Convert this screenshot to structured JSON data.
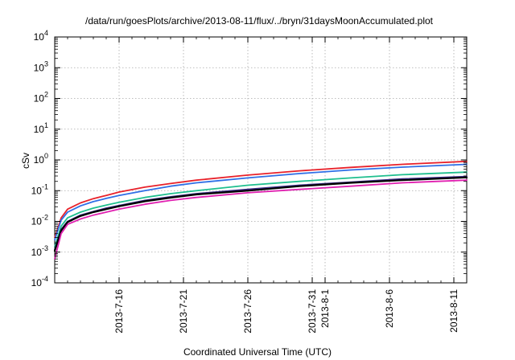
{
  "chart_data": {
    "type": "line",
    "title": "/data/run/goesPlots/archive/2013-08-11/flux/../bryn/31daysMoonAccumulated.plot",
    "xlabel": "Coordinated Universal Time (UTC)",
    "ylabel": "cSv",
    "yscale": "log",
    "ylim": [
      0.0001,
      10000
    ],
    "xlim": [
      "2013-07-11",
      "2013-08-12"
    ],
    "grid": true,
    "x_ticks": [
      "2013-7-16",
      "2013-7-21",
      "2013-7-26",
      "2013-7-31",
      "2013-8-1",
      "2013-8-6",
      "2013-8-11"
    ],
    "y_ticks": [
      {
        "value": 0.0001,
        "base": "10",
        "exp": "-4"
      },
      {
        "value": 0.001,
        "base": "10",
        "exp": "-3"
      },
      {
        "value": 0.01,
        "base": "10",
        "exp": "-2"
      },
      {
        "value": 0.1,
        "base": "10",
        "exp": "-1"
      },
      {
        "value": 1,
        "base": "10",
        "exp": "0"
      },
      {
        "value": 10,
        "base": "10",
        "exp": "1"
      },
      {
        "value": 100,
        "base": "10",
        "exp": "2"
      },
      {
        "value": 1000,
        "base": "10",
        "exp": "3"
      },
      {
        "value": 10000,
        "base": "10",
        "exp": "4"
      }
    ],
    "series": [
      {
        "color": "#e8212a",
        "x": [
          "2013-07-11",
          "2013-07-11T12:00",
          "2013-07-12",
          "2013-07-13",
          "2013-07-14",
          "2013-07-15",
          "2013-07-16",
          "2013-07-18",
          "2013-07-20",
          "2013-07-22",
          "2013-07-26",
          "2013-07-30",
          "2013-08-03",
          "2013-08-07",
          "2013-08-12"
        ],
        "y": [
          0.003,
          0.013,
          0.025,
          0.04,
          0.055,
          0.07,
          0.09,
          0.13,
          0.17,
          0.22,
          0.32,
          0.44,
          0.57,
          0.72,
          0.9
        ]
      },
      {
        "color": "#2f6fe6",
        "x": [
          "2013-07-11",
          "2013-07-11T12:00",
          "2013-07-12",
          "2013-07-13",
          "2013-07-14",
          "2013-07-15",
          "2013-07-16",
          "2013-07-18",
          "2013-07-20",
          "2013-07-22",
          "2013-07-26",
          "2013-07-30",
          "2013-08-03",
          "2013-08-07",
          "2013-08-12"
        ],
        "y": [
          0.0025,
          0.011,
          0.02,
          0.032,
          0.044,
          0.056,
          0.07,
          0.1,
          0.14,
          0.18,
          0.26,
          0.36,
          0.47,
          0.58,
          0.72
        ]
      },
      {
        "color": "#1fbf8f",
        "x": [
          "2013-07-11",
          "2013-07-11T12:00",
          "2013-07-12",
          "2013-07-13",
          "2013-07-14",
          "2013-07-15",
          "2013-07-16",
          "2013-07-18",
          "2013-07-20",
          "2013-07-22",
          "2013-07-26",
          "2013-07-30",
          "2013-08-03",
          "2013-08-07",
          "2013-08-12"
        ],
        "y": [
          0.0015,
          0.007,
          0.013,
          0.02,
          0.027,
          0.034,
          0.042,
          0.06,
          0.08,
          0.1,
          0.15,
          0.2,
          0.26,
          0.33,
          0.4
        ]
      },
      {
        "color": "#3a2a86",
        "x": [
          "2013-07-11",
          "2013-07-11T12:00",
          "2013-07-12",
          "2013-07-13",
          "2013-07-14",
          "2013-07-15",
          "2013-07-16",
          "2013-07-18",
          "2013-07-20",
          "2013-07-22",
          "2013-07-26",
          "2013-07-30",
          "2013-08-03",
          "2013-08-07",
          "2013-08-12"
        ],
        "y": [
          0.0012,
          0.0055,
          0.01,
          0.016,
          0.021,
          0.027,
          0.033,
          0.048,
          0.063,
          0.08,
          0.11,
          0.15,
          0.19,
          0.24,
          0.29
        ]
      },
      {
        "color": "#000000",
        "x": [
          "2013-07-11",
          "2013-07-11T12:00",
          "2013-07-12",
          "2013-07-13",
          "2013-07-14",
          "2013-07-15",
          "2013-07-16",
          "2013-07-18",
          "2013-07-20",
          "2013-07-22",
          "2013-07-26",
          "2013-07-30",
          "2013-08-03",
          "2013-08-07",
          "2013-08-12"
        ],
        "y": [
          0.0011,
          0.005,
          0.0095,
          0.015,
          0.02,
          0.025,
          0.031,
          0.045,
          0.059,
          0.075,
          0.1,
          0.14,
          0.18,
          0.22,
          0.27
        ]
      },
      {
        "color": "#e020b0",
        "x": [
          "2013-07-11",
          "2013-07-11T12:00",
          "2013-07-12",
          "2013-07-13",
          "2013-07-14",
          "2013-07-15",
          "2013-07-16",
          "2013-07-18",
          "2013-07-20",
          "2013-07-22",
          "2013-07-26",
          "2013-07-30",
          "2013-08-03",
          "2013-08-07",
          "2013-08-12"
        ],
        "y": [
          0.0006,
          0.004,
          0.008,
          0.012,
          0.016,
          0.02,
          0.025,
          0.036,
          0.048,
          0.06,
          0.085,
          0.11,
          0.14,
          0.18,
          0.22
        ]
      }
    ]
  }
}
